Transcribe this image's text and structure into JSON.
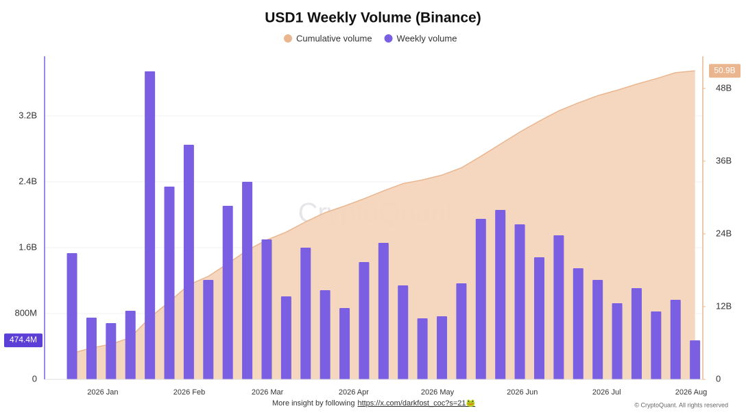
{
  "chart_data": {
    "type": "bar",
    "title": "USD1 Weekly Volume (Binance)",
    "watermark": "CryptoQuant",
    "footer": {
      "text": "More insight by following",
      "link": "https://x.com/darkfost_coc?s=21🐸",
      "copyright": "© CryptoQuant. All rights reserved"
    },
    "categories": [
      null,
      null,
      null,
      null,
      null,
      null,
      null,
      null,
      null,
      null,
      null,
      null,
      null,
      null,
      null,
      null,
      null,
      null,
      null,
      null,
      null,
      null,
      null,
      null,
      null,
      null,
      null,
      null,
      null,
      null,
      null,
      null,
      null
    ],
    "xlim": [
      -1.41,
      32.4
    ],
    "xticks": [
      {
        "value": 1.58,
        "label": "2026 Jan"
      },
      {
        "value": 6.02,
        "label": "2026 Feb"
      },
      {
        "value": 10.04,
        "label": "2026 Mar"
      },
      {
        "value": 14.47,
        "label": "2026 Apr"
      },
      {
        "value": 18.77,
        "label": "2026 May"
      },
      {
        "value": 23.13,
        "label": "2026 Jun"
      },
      {
        "value": 27.46,
        "label": "2026 Jul"
      },
      {
        "value": 31.8,
        "label": "2026 Aug"
      }
    ],
    "ylim": [
      0,
      3925000000
    ],
    "yticks": [
      0,
      {
        "value": 800000000,
        "label": "800M"
      },
      {
        "value": 1600000000,
        "label": "1.6B"
      },
      {
        "value": 2400000000,
        "label": "2.4B"
      },
      {
        "value": 3200000000,
        "label": "3.2B"
      }
    ],
    "y2lim": [
      0,
      53300000000
    ],
    "y2ticks": [
      0,
      {
        "value": 12000000000,
        "label": "12B"
      },
      {
        "value": 24000000000,
        "label": "24B"
      },
      {
        "value": 36000000000,
        "label": "36B"
      },
      {
        "value": 48000000000,
        "label": "48B"
      }
    ],
    "grid": true,
    "legend": "top",
    "series": [
      {
        "name": "Cumulative volume",
        "type": "area",
        "axis": "y2",
        "color": "#e9b68f",
        "values": [
          4300000000,
          5200000000,
          5800000000,
          6900000000,
          10200000000,
          12800000000,
          15600000000,
          17000000000,
          19100000000,
          21300000000,
          23000000000,
          24300000000,
          26000000000,
          27500000000,
          28600000000,
          29800000000,
          31100000000,
          32300000000,
          32900000000,
          33700000000,
          34900000000,
          36800000000,
          38800000000,
          40800000000,
          42600000000,
          44300000000,
          45600000000,
          46800000000,
          47700000000,
          48700000000,
          49600000000,
          50600000000,
          50900000000
        ],
        "value_labels": [
          null,
          null,
          null,
          null,
          null,
          null,
          null,
          null,
          null,
          null,
          null,
          null,
          null,
          null,
          null,
          null,
          null,
          null,
          null,
          null,
          null,
          null,
          null,
          null,
          null,
          null,
          null,
          null,
          null,
          null,
          null,
          null,
          "50.9B"
        ]
      },
      {
        "name": "Weekly volume",
        "type": "bar",
        "color": "#7a5fe2",
        "values": [
          1533000000,
          750000000,
          683000000,
          833000000,
          3742000000,
          2342000000,
          2850000000,
          1208000000,
          2108000000,
          2400000000,
          1700000000,
          1008000000,
          1600000000,
          1083000000,
          867000000,
          1425000000,
          1658000000,
          1142000000,
          742000000,
          767000000,
          1167000000,
          1950000000,
          2058000000,
          1883000000,
          1483000000,
          1750000000,
          1350000000,
          1208000000,
          925000000,
          1108000000,
          825000000,
          967000000,
          474400000
        ],
        "value_labels": [
          null,
          null,
          null,
          null,
          null,
          null,
          null,
          null,
          null,
          null,
          null,
          null,
          null,
          null,
          null,
          null,
          null,
          null,
          null,
          null,
          null,
          null,
          null,
          null,
          null,
          null,
          null,
          null,
          null,
          null,
          null,
          null,
          "474.4M"
        ]
      }
    ]
  }
}
